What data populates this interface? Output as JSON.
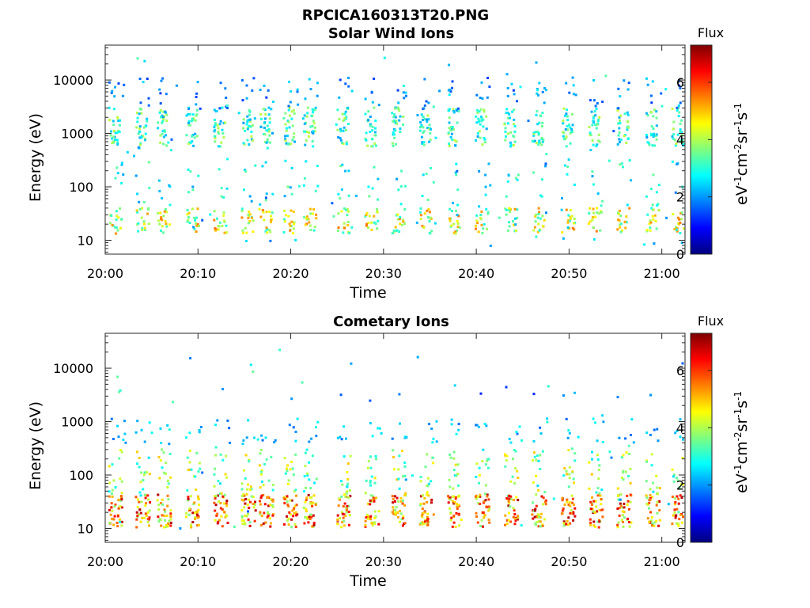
{
  "figure_title": "RPCICA160313T20.PNG",
  "colors": {
    "colormap": [
      "#00007f",
      "#0000ff",
      "#007fff",
      "#00ffff",
      "#7fff7f",
      "#ffff00",
      "#ff7f00",
      "#ff0000",
      "#7f0000"
    ]
  },
  "chart_data": [
    {
      "type": "heatmap",
      "title": "Solar Wind Ions",
      "xlabel": "Time",
      "ylabel": "Energy (eV)",
      "x_ticks": [
        "20:00",
        "20:10",
        "20:20",
        "20:30",
        "20:40",
        "20:50",
        "21:00"
      ],
      "x_range_minutes": [
        0,
        62.5
      ],
      "y_ticks": [
        "10",
        "100",
        "1000",
        "10000"
      ],
      "y_scale": "log",
      "y_range": [
        5.5,
        45000
      ],
      "colorbar": {
        "label": "eV-1cm-2sr-1s-1",
        "title": "Flux",
        "ticks": [
          "0",
          "2",
          "4",
          "6"
        ],
        "range": [
          0,
          7.3
        ]
      },
      "scan_times_minutes": [
        0.3,
        3.2,
        5.5,
        8.6,
        11.6,
        14.6,
        16.5,
        19.1,
        21.3,
        24.9,
        27.9,
        30.8,
        33.8,
        36.8,
        39.8,
        42.9,
        45.9,
        49.1,
        52.0,
        55.1,
        58.2,
        61.0
      ],
      "features": [
        {
          "name": "high-energy bursts",
          "energy_eV": [
            700,
            3000
          ],
          "flux": [
            2,
            4
          ]
        },
        {
          "name": "low-energy band",
          "energy_eV": [
            15,
            40
          ],
          "flux": [
            3,
            5.5
          ]
        }
      ]
    },
    {
      "type": "heatmap",
      "title": "Cometary Ions",
      "xlabel": "Time",
      "ylabel": "Energy (eV)",
      "x_ticks": [
        "20:00",
        "20:10",
        "20:20",
        "20:30",
        "20:40",
        "20:50",
        "21:00"
      ],
      "x_range_minutes": [
        0,
        62.5
      ],
      "y_ticks": [
        "10",
        "100",
        "1000",
        "10000"
      ],
      "y_scale": "log",
      "y_range": [
        5.5,
        45000
      ],
      "colorbar": {
        "label": "eV-1cm-2sr-1s-1",
        "title": "Flux",
        "ticks": [
          "0",
          "2",
          "4",
          "6"
        ],
        "range": [
          0,
          7.3
        ]
      },
      "scan_times_minutes": [
        0.3,
        3.2,
        5.5,
        8.6,
        11.6,
        14.6,
        16.5,
        19.1,
        21.3,
        24.9,
        27.9,
        30.8,
        33.8,
        36.8,
        39.8,
        42.9,
        45.9,
        49.1,
        52.0,
        55.1,
        58.2,
        61.0
      ],
      "features": [
        {
          "name": "intense low-energy band",
          "energy_eV": [
            12,
            45
          ],
          "flux": [
            4,
            7
          ]
        },
        {
          "name": "mid-energy streaks",
          "energy_eV": [
            50,
            300
          ],
          "flux": [
            2.5,
            5
          ]
        },
        {
          "name": "sparse high-energy",
          "energy_eV": [
            500,
            1200
          ],
          "flux": [
            1.5,
            3
          ]
        }
      ]
    }
  ]
}
